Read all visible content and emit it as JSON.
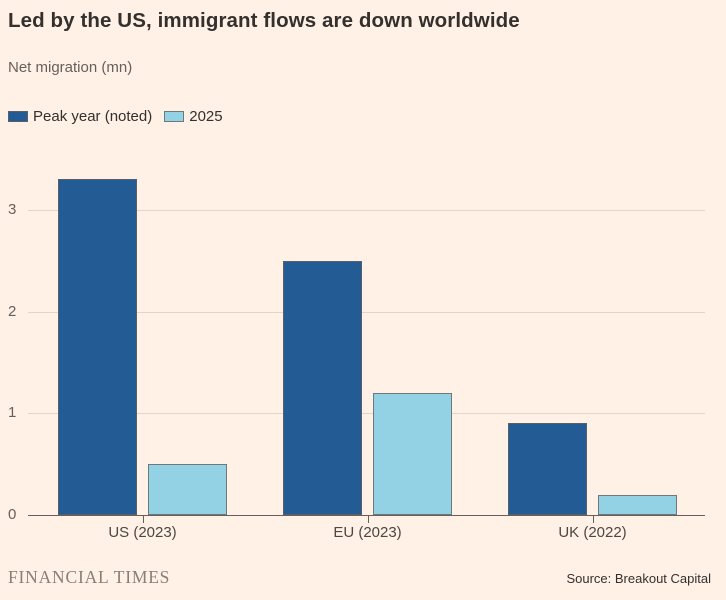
{
  "title": "Led by the US, immigrant flows are down worldwide",
  "subtitle": "Net migration (mn)",
  "legend": [
    {
      "label": "Peak year (noted)",
      "color": "#235B94"
    },
    {
      "label": "2025",
      "color": "#93D2E4"
    }
  ],
  "chart_data": {
    "type": "bar",
    "title": "Led by the US, immigrant flows are down worldwide",
    "ylabel": "Net migration (mn)",
    "categories": [
      "US (2023)",
      "EU (2023)",
      "UK (2022)"
    ],
    "series": [
      {
        "name": "Peak year (noted)",
        "color": "#235B94",
        "values": [
          3.3,
          2.5,
          0.9
        ]
      },
      {
        "name": "2025",
        "color": "#93D2E4",
        "values": [
          0.5,
          1.2,
          0.2
        ]
      }
    ],
    "yticks": [
      0,
      1,
      2,
      3
    ],
    "ylim": [
      0,
      3.5
    ],
    "grid": "horizontal",
    "legend_position": "top-left"
  },
  "footer": {
    "brand": "FINANCIAL TIMES",
    "source": "Source: Breakout Capital"
  },
  "colors": {
    "background": "#FFF1E5",
    "title_text": "#33302E",
    "muted_text": "#66605C",
    "axis_label_text": "#4D4742",
    "gridline": "#E2D4C6",
    "axis_line": "#66605C",
    "bar_peak": "#235B94",
    "bar_2025": "#93D2E4",
    "brand_text": "#878078"
  }
}
